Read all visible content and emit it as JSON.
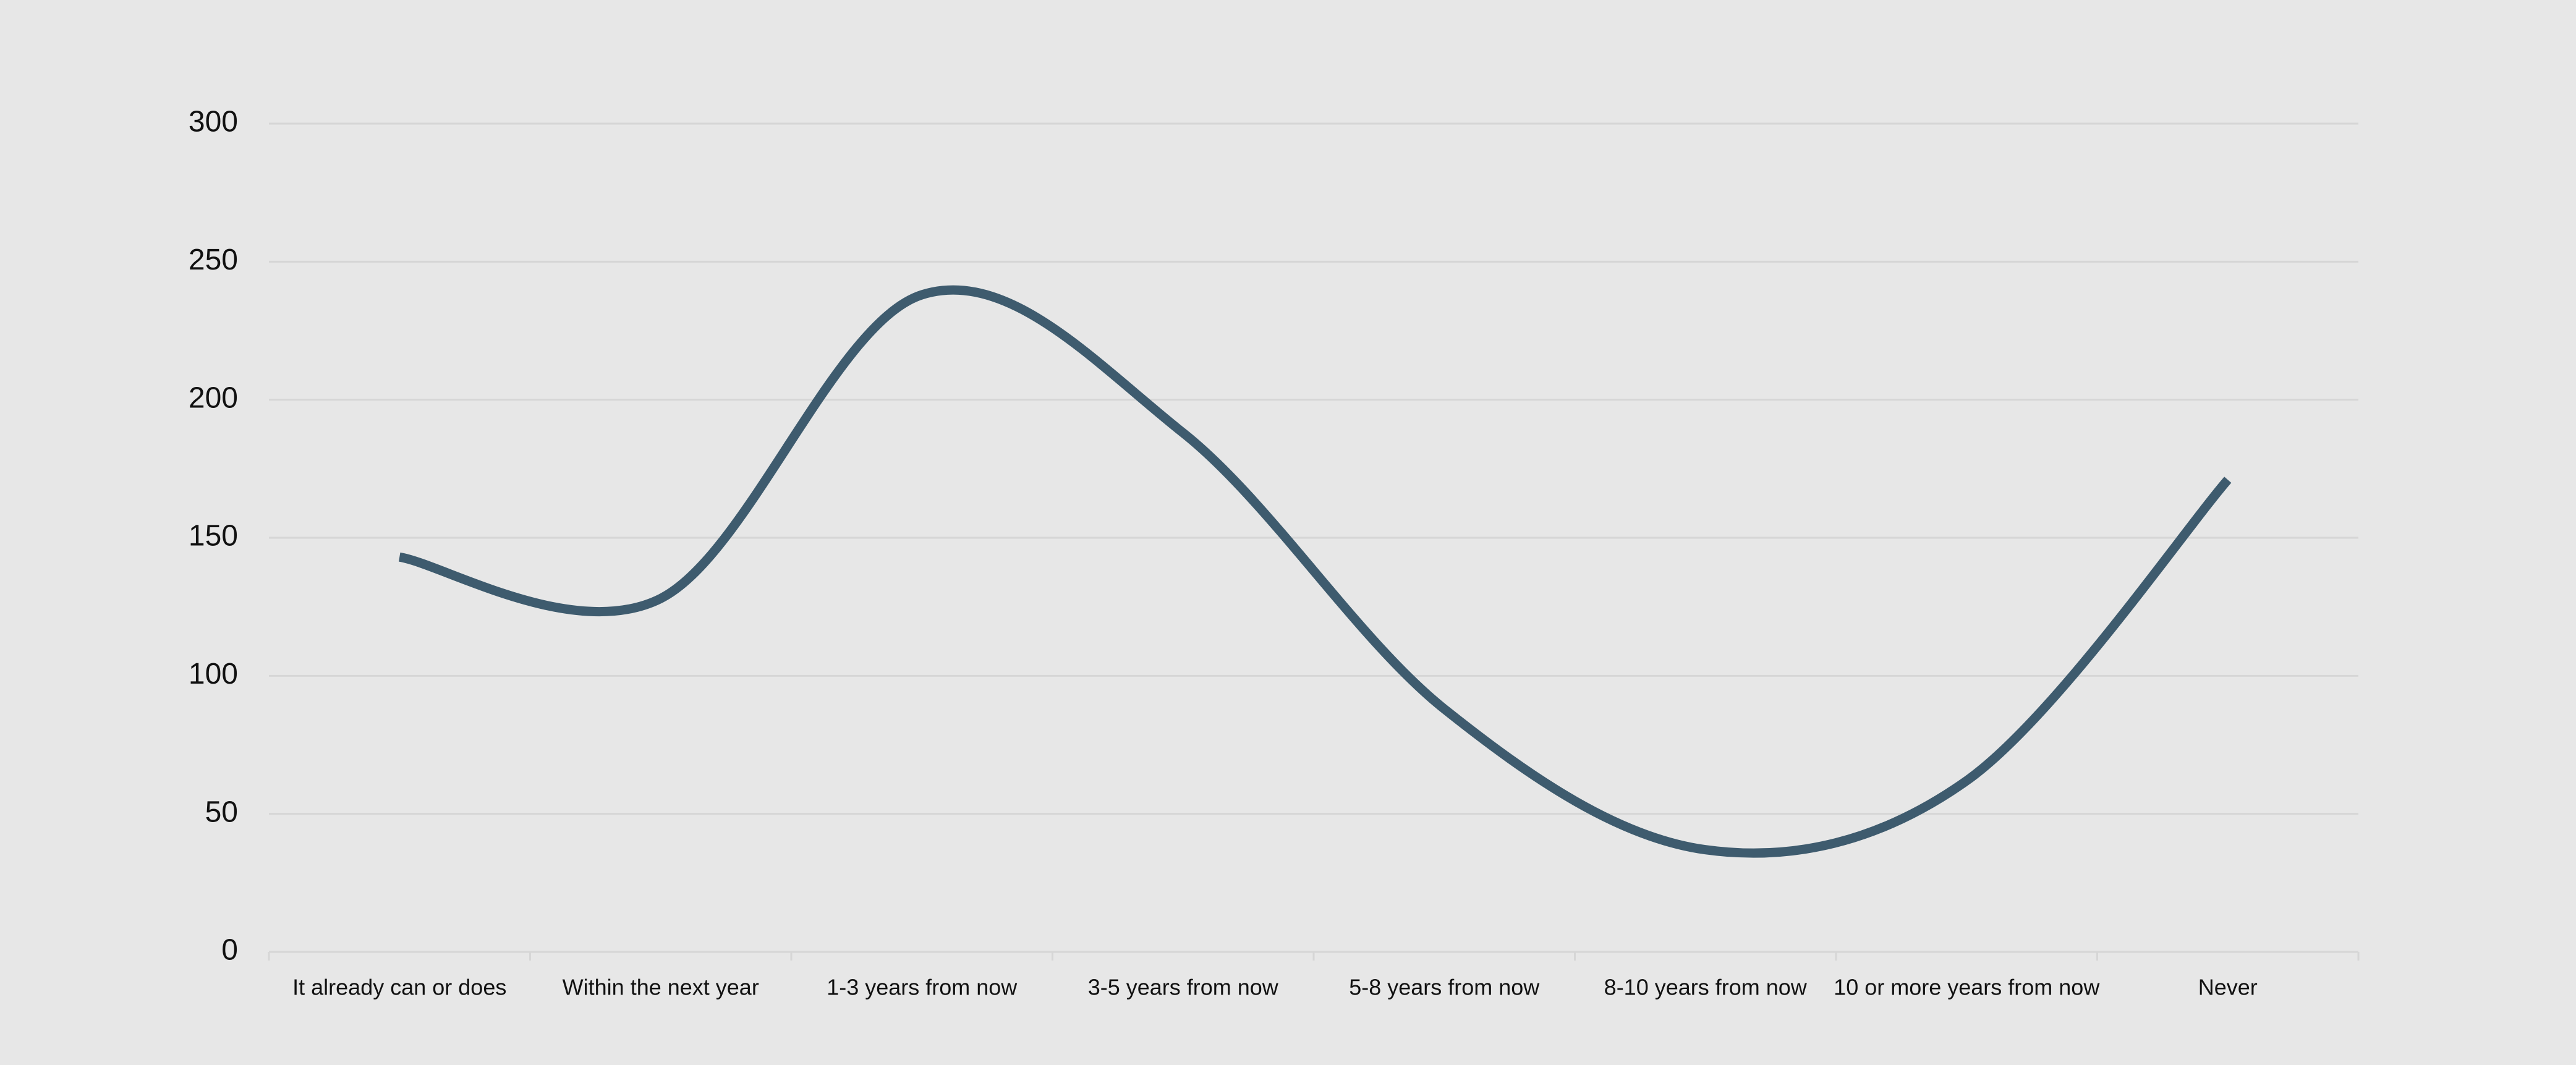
{
  "chart_data": {
    "type": "line",
    "title": "",
    "xlabel": "",
    "ylabel": "",
    "categories": [
      "It already can or does",
      "Within the next year",
      "1-3 years from now",
      "3-5 years from now",
      "5-8 years from now",
      "8-10 years from now",
      "10 or more years from now",
      "Never"
    ],
    "series": [
      {
        "values": [
          143,
          128,
          238,
          188,
          88,
          37,
          62,
          171
        ]
      }
    ],
    "ylim": [
      0,
      300
    ],
    "yticks": [
      0,
      50,
      100,
      150,
      200,
      250,
      300
    ],
    "grid": true,
    "legend": "none",
    "smooth": true,
    "colors": {
      "line": "#3e5b6e",
      "grid": "#d6d6d6",
      "background": "#e7e7e7",
      "text": "#111111"
    }
  }
}
